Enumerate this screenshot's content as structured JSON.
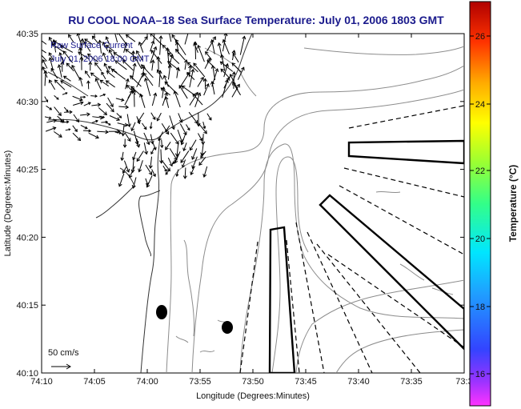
{
  "title": "RU COOL  NOAA–18  Sea Surface Temperature:  July 01, 2006 1803 GMT",
  "map": {
    "xlabel": "Longitude (Degrees:Minutes)",
    "ylabel": "Latitude (Degrees:Minutes)",
    "x_ticks": [
      "74:10",
      "74:05",
      "74:00",
      "73:55",
      "73:50",
      "73:45",
      "73:40",
      "73:35",
      "73:3"
    ],
    "y_ticks": [
      "40:35",
      "40:30",
      "40:25",
      "40:20",
      "40:15",
      "40:10"
    ],
    "overlay_line1": "Raw Surface Current",
    "overlay_line2": "July 01, 2006 18:00 GMT",
    "scale_label": "50 cm/s"
  },
  "colorbar": {
    "label": "Temperature (°C)",
    "ticks": [
      "26",
      "24",
      "22",
      "20",
      "18",
      "16"
    ]
  }
}
